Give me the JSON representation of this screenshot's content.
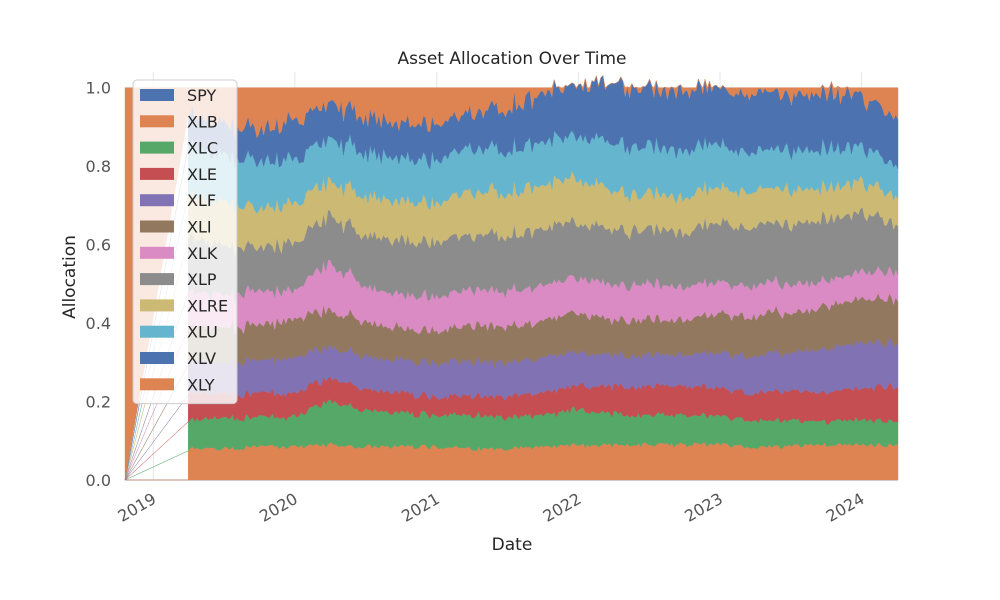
{
  "chart_data": {
    "type": "area",
    "stacked": true,
    "title": "Asset Allocation Over Time",
    "xlabel": "Date",
    "ylabel": "Allocation",
    "xlim": [
      "2018-10-20",
      "2024-04-04"
    ],
    "ylim": [
      0,
      1.04
    ],
    "yticks": [
      "0.0",
      "0.2",
      "0.4",
      "0.6",
      "0.8",
      "1.0"
    ],
    "xticks": [
      "2019",
      "2020",
      "2021",
      "2022",
      "2023",
      "2024"
    ],
    "grid": true,
    "legend_position": "upper-left",
    "x": [
      "2018-10-20",
      "2019-04-01",
      "2019-07-01",
      "2019-10-01",
      "2020-01-01",
      "2020-04-01",
      "2020-07-01",
      "2020-10-01",
      "2021-01-01",
      "2021-04-01",
      "2021-07-01",
      "2021-10-01",
      "2022-01-01",
      "2022-04-01",
      "2022-07-01",
      "2022-10-01",
      "2023-01-01",
      "2023-04-01",
      "2023-07-01",
      "2023-10-01",
      "2024-01-01",
      "2024-04-04"
    ],
    "series": [
      {
        "name": "SPY",
        "color": "#4c72b0",
        "values": [
          0,
          0.0,
          0.0,
          0.0,
          0.0,
          0.0,
          0.0,
          0.0,
          0.0,
          0.0,
          0.0,
          0.0,
          0.0,
          0.0,
          0.0,
          0.0,
          0.0,
          0.0,
          0.0,
          0.0,
          0.0,
          0.0
        ]
      },
      {
        "name": "XLB",
        "color": "#dd8452",
        "values": [
          0,
          0.08,
          0.08,
          0.085,
          0.085,
          0.09,
          0.085,
          0.085,
          0.085,
          0.08,
          0.08,
          0.085,
          0.09,
          0.09,
          0.09,
          0.09,
          0.09,
          0.085,
          0.085,
          0.09,
          0.09,
          0.09
        ]
      },
      {
        "name": "XLC",
        "color": "#55a868",
        "values": [
          0,
          0.07,
          0.08,
          0.075,
          0.075,
          0.11,
          0.095,
          0.085,
          0.08,
          0.085,
          0.08,
          0.08,
          0.09,
          0.08,
          0.075,
          0.075,
          0.07,
          0.07,
          0.065,
          0.06,
          0.065,
          0.06
        ]
      },
      {
        "name": "XLE",
        "color": "#c44e52",
        "values": [
          0,
          0.07,
          0.06,
          0.06,
          0.06,
          0.06,
          0.055,
          0.05,
          0.045,
          0.05,
          0.055,
          0.055,
          0.06,
          0.07,
          0.075,
          0.075,
          0.07,
          0.07,
          0.075,
          0.075,
          0.08,
          0.09
        ]
      },
      {
        "name": "XLF",
        "color": "#8172b3",
        "values": [
          0,
          0.08,
          0.08,
          0.085,
          0.09,
          0.08,
          0.085,
          0.085,
          0.085,
          0.09,
          0.085,
          0.09,
          0.085,
          0.08,
          0.08,
          0.08,
          0.09,
          0.095,
          0.1,
          0.11,
          0.12,
          0.11
        ]
      },
      {
        "name": "XLI",
        "color": "#937860",
        "values": [
          0,
          0.09,
          0.09,
          0.09,
          0.1,
          0.09,
          0.09,
          0.08,
          0.08,
          0.09,
          0.09,
          0.095,
          0.1,
          0.09,
          0.09,
          0.09,
          0.1,
          0.1,
          0.1,
          0.11,
          0.11,
          0.11
        ]
      },
      {
        "name": "XLK",
        "color": "#da8bc3",
        "values": [
          0,
          0.09,
          0.085,
          0.085,
          0.075,
          0.12,
          0.09,
          0.085,
          0.09,
          0.09,
          0.09,
          0.09,
          0.09,
          0.09,
          0.09,
          0.085,
          0.08,
          0.08,
          0.075,
          0.065,
          0.07,
          0.07
        ]
      },
      {
        "name": "XLP",
        "color": "#8c8c8c",
        "values": [
          0,
          0.14,
          0.12,
          0.11,
          0.12,
          0.12,
          0.13,
          0.14,
          0.14,
          0.14,
          0.14,
          0.145,
          0.14,
          0.14,
          0.14,
          0.14,
          0.15,
          0.15,
          0.15,
          0.155,
          0.15,
          0.12
        ]
      },
      {
        "name": "XLRE",
        "color": "#ccb974",
        "values": [
          0,
          0.11,
          0.11,
          0.1,
          0.1,
          0.09,
          0.1,
          0.1,
          0.1,
          0.11,
          0.11,
          0.11,
          0.11,
          0.1,
          0.09,
          0.09,
          0.09,
          0.09,
          0.09,
          0.08,
          0.08,
          0.07
        ]
      },
      {
        "name": "XLU",
        "color": "#64b5cd",
        "values": [
          0,
          0.12,
          0.12,
          0.12,
          0.11,
          0.11,
          0.11,
          0.11,
          0.11,
          0.11,
          0.11,
          0.11,
          0.11,
          0.12,
          0.12,
          0.12,
          0.11,
          0.1,
          0.1,
          0.1,
          0.09,
          0.08
        ]
      },
      {
        "name": "XLV",
        "color": "#4c72b0",
        "values": [
          0,
          0.08,
          0.08,
          0.08,
          0.1,
          0.09,
          0.09,
          0.09,
          0.09,
          0.09,
          0.11,
          0.12,
          0.13,
          0.15,
          0.15,
          0.15,
          0.14,
          0.15,
          0.14,
          0.14,
          0.13,
          0.12
        ]
      },
      {
        "name": "XLY",
        "color": "#dd8452",
        "values": [
          1,
          0.07,
          0.095,
          0.11,
          0.085,
          0.04,
          0.07,
          0.09,
          0.095,
          0.065,
          0.05,
          0.02,
          -0.005,
          -0.01,
          0.0,
          0.005,
          0.01,
          0.01,
          0.02,
          0.015,
          0.015,
          0.08
        ]
      }
    ]
  }
}
